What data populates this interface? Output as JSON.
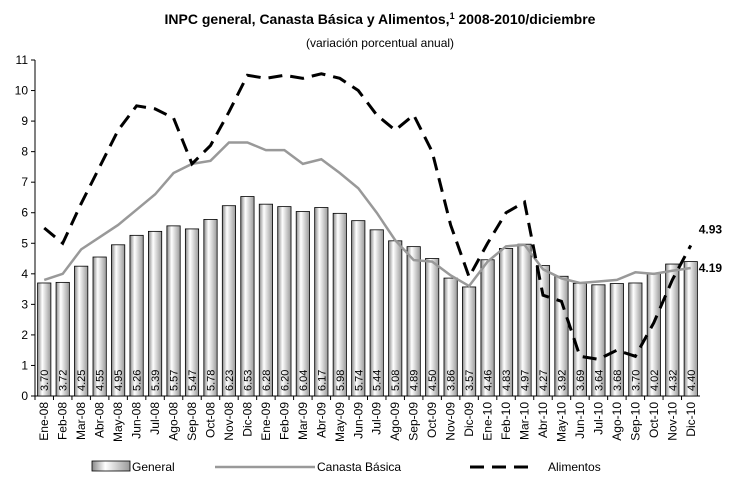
{
  "chart_data": {
    "type": "combo",
    "title": "INPC general, Canasta Básica y Alimentos,",
    "title_note": "1",
    "title_suffix": " 2008-2010/diciembre",
    "subtitle": "(variación porcentual anual)",
    "categories": [
      "Ene-08",
      "Feb-08",
      "Mar-08",
      "Abr-08",
      "May-08",
      "Jun-08",
      "Jul-08",
      "Ago-08",
      "Sep-08",
      "Oct-08",
      "Nov-08",
      "Dic-08",
      "Ene-09",
      "Feb-09",
      "Mar-09",
      "Abr-09",
      "May-09",
      "Jun-09",
      "Jul-09",
      "Ago-09",
      "Sep-09",
      "Oct-09",
      "Nov-09",
      "Dic-09",
      "Ene-10",
      "Feb-10",
      "Mar-10",
      "Abr-10",
      "May-10",
      "Jun-10",
      "Jul-10",
      "Ago-10",
      "Sep-10",
      "Oct-10",
      "Nov-10",
      "Dic-10"
    ],
    "ylim": [
      0,
      11
    ],
    "yticks": [
      0,
      1,
      2,
      3,
      4,
      5,
      6,
      7,
      8,
      9,
      10,
      11
    ],
    "grid": false,
    "legend": "bottom",
    "series": [
      {
        "name": "General",
        "type": "bar",
        "color": "#c8c8c8",
        "values": [
          3.7,
          3.72,
          4.25,
          4.55,
          4.95,
          5.26,
          5.39,
          5.57,
          5.47,
          5.78,
          6.23,
          6.53,
          6.28,
          6.2,
          6.04,
          6.17,
          5.98,
          5.74,
          5.44,
          5.08,
          4.89,
          4.5,
          3.86,
          3.57,
          4.46,
          4.83,
          4.97,
          4.27,
          3.92,
          3.69,
          3.64,
          3.68,
          3.7,
          4.02,
          4.32,
          4.4
        ],
        "value_labels": [
          "3.70",
          "3.72",
          "4.25",
          "4.55",
          "4.95",
          "5.26",
          "5.39",
          "5.57",
          "5.47",
          "5.78",
          "6.23",
          "6.53",
          "6.28",
          "6.20",
          "6.04",
          "6.17",
          "5.98",
          "5.74",
          "5.44",
          "5.08",
          "4.89",
          "4.50",
          "3.86",
          "3.57",
          "4.46",
          "4.83",
          "4.97",
          "4.27",
          "3.92",
          "3.69",
          "3.64",
          "3.68",
          "3.70",
          "4.02",
          "4.32",
          "4.40"
        ]
      },
      {
        "name": "Canasta Básica",
        "type": "line",
        "color": "#999999",
        "dashed": false,
        "values": [
          3.8,
          4.0,
          4.8,
          5.2,
          5.6,
          6.1,
          6.6,
          7.3,
          7.6,
          7.7,
          8.3,
          8.3,
          8.05,
          8.05,
          7.6,
          7.75,
          7.3,
          6.8,
          6.0,
          5.1,
          4.45,
          4.4,
          3.95,
          3.6,
          4.4,
          4.9,
          4.95,
          4.15,
          3.85,
          3.7,
          3.75,
          3.8,
          4.05,
          4.0,
          4.1,
          4.19
        ],
        "end_label": "4.19"
      },
      {
        "name": "Alimentos",
        "type": "line",
        "color": "#000000",
        "dashed": true,
        "values": [
          5.5,
          5.0,
          6.3,
          7.5,
          8.7,
          9.5,
          9.4,
          9.1,
          7.6,
          8.2,
          9.3,
          10.5,
          10.4,
          10.5,
          10.4,
          10.55,
          10.4,
          10.0,
          9.2,
          8.7,
          9.2,
          8.0,
          5.6,
          3.9,
          5.0,
          6.0,
          6.35,
          3.3,
          3.1,
          1.3,
          1.2,
          1.5,
          1.3,
          2.4,
          3.8,
          4.93
        ],
        "end_label": "4.93"
      }
    ]
  }
}
